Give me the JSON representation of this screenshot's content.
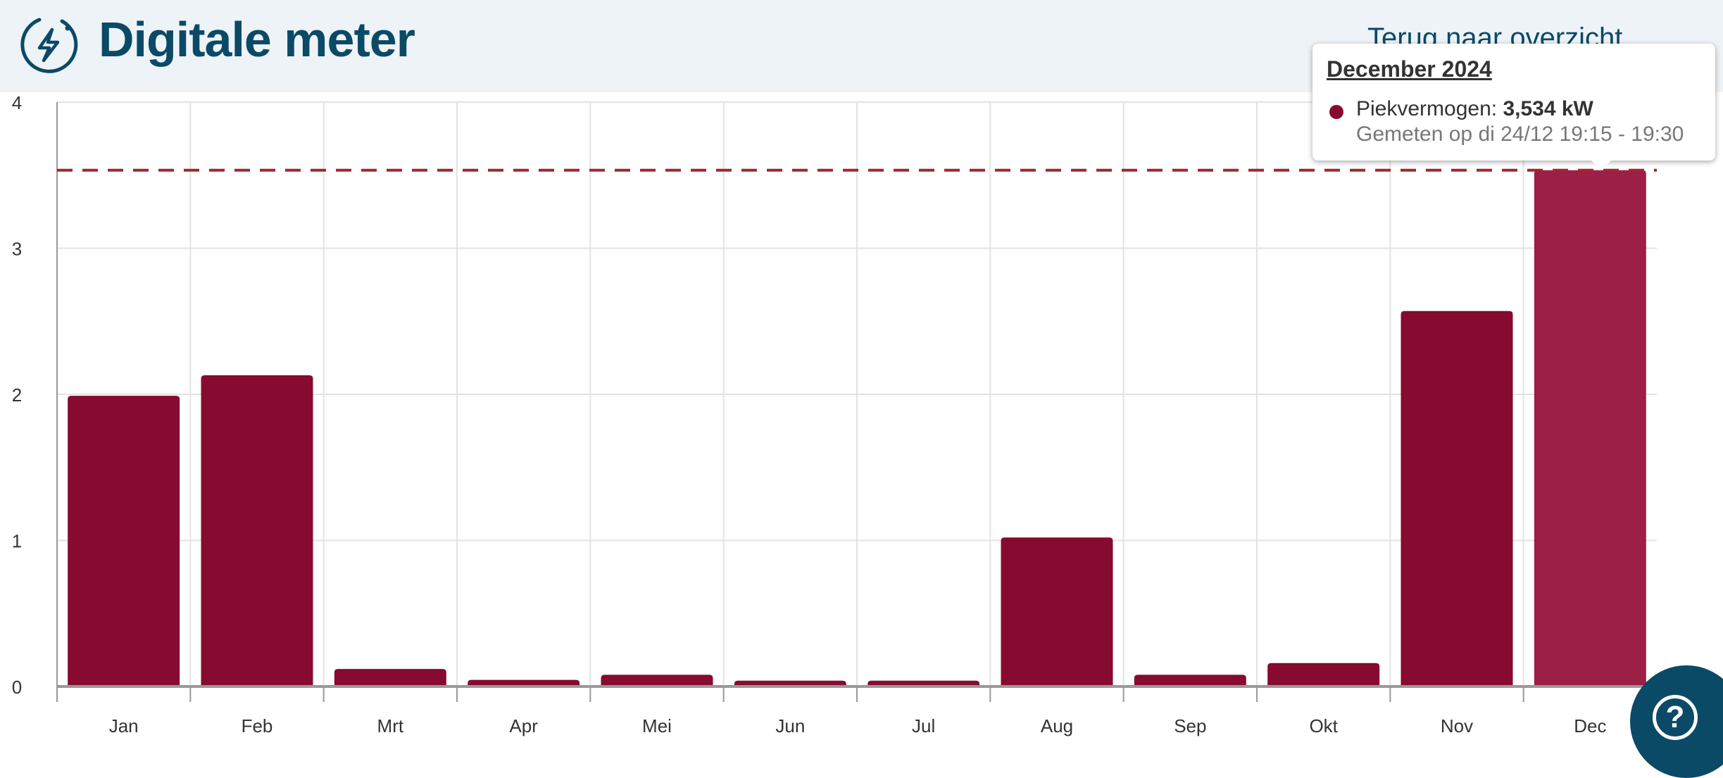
{
  "header": {
    "title": "Digitale meter",
    "back_link": "Terug naar overzicht",
    "icon": "lightning-circle-icon"
  },
  "colors": {
    "bar": "#870a30",
    "bar_highlight": "#9c1f47",
    "peak_line": "#a3262f",
    "brand": "#0b4a66"
  },
  "tooltip": {
    "title": "December 2024",
    "series_label": "Piekvermogen:",
    "value": "3,534 kW",
    "measured": "Gemeten op di 24/12 19:15 - 19:30"
  },
  "help_button": {
    "icon": "question-circle-icon",
    "label": "?"
  },
  "chart_data": {
    "type": "bar",
    "categories": [
      "Jan",
      "Feb",
      "Mrt",
      "Apr",
      "Mei",
      "Jun",
      "Jul",
      "Aug",
      "Sep",
      "Okt",
      "Nov",
      "Dec"
    ],
    "values": [
      1.99,
      2.13,
      0.12,
      0.045,
      0.08,
      0.04,
      0.04,
      1.02,
      0.08,
      0.16,
      2.57,
      3.534
    ],
    "ylim": [
      0,
      4
    ],
    "yticks": [
      "0",
      "1",
      "2",
      "3",
      "4"
    ],
    "reference_line": {
      "value": 3.534,
      "style": "dashed"
    },
    "highlighted": "Dec",
    "grid": true,
    "xlabel": "",
    "ylabel": "",
    "title": ""
  }
}
